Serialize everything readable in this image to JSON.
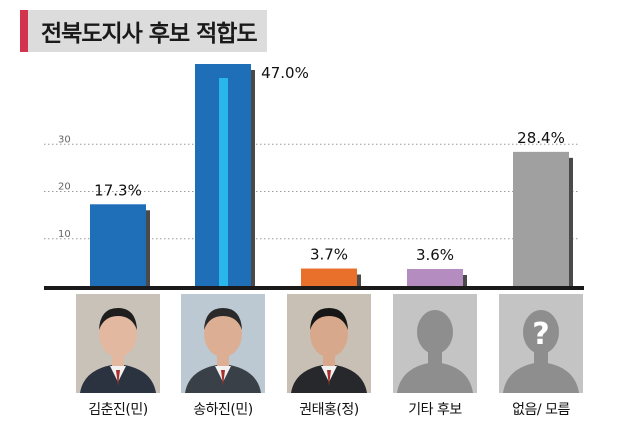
{
  "title": "전북도지사 후보 적합도",
  "chart_data": {
    "type": "bar",
    "title": "전북도지사 후보 적합도",
    "categories": [
      "김춘진(민)",
      "송하진(민)",
      "권태홍(정)",
      "기타 후보",
      "없음/ 모름"
    ],
    "values": [
      17.3,
      47.0,
      3.7,
      3.6,
      28.4
    ],
    "data_labels": [
      "17.3%",
      "47.0%",
      "3.7%",
      "3.6%",
      "28.4%"
    ],
    "y_ticks": [
      10,
      20,
      30
    ],
    "ylim": [
      0,
      50
    ],
    "grid": "dotted horizontal",
    "colors": [
      "#1e6fb8",
      "#1e6fb8",
      "#e8702a",
      "#b48cc0",
      "#a0a0a0"
    ],
    "highlight_color": "#29b6e8"
  },
  "candidates": [
    {
      "name": "김춘진(민)",
      "photo": "portrait"
    },
    {
      "name": "송하진(민)",
      "photo": "portrait"
    },
    {
      "name": "권태홍(정)",
      "photo": "portrait"
    },
    {
      "name": "기타 후보",
      "photo": "silhouette"
    },
    {
      "name": "없음/ 모름",
      "photo": "silhouette-question"
    }
  ]
}
